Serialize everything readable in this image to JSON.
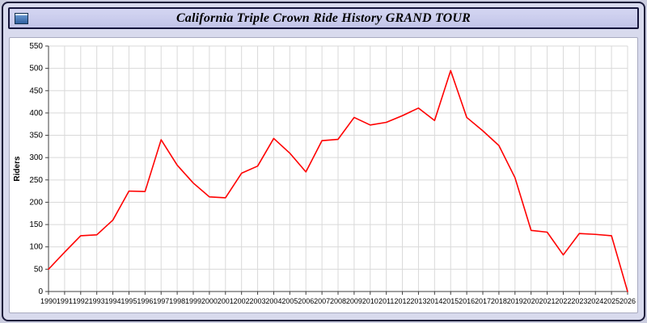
{
  "window": {
    "title": "California Triple Crown Ride History GRAND TOUR"
  },
  "chart_data": {
    "type": "line",
    "title": "California Triple Crown Ride History GRAND TOUR",
    "xlabel": "",
    "ylabel": "Riders",
    "ylim": [
      0,
      550
    ],
    "ytick_step": 50,
    "grid": true,
    "legend": false,
    "line_color": "#ff0000",
    "x": [
      1990,
      1991,
      1992,
      1993,
      1994,
      1995,
      1996,
      1997,
      1998,
      1999,
      2000,
      2001,
      2002,
      2003,
      2004,
      2005,
      2006,
      2007,
      2008,
      2009,
      2010,
      2011,
      2012,
      2013,
      2014,
      2015,
      2016,
      2017,
      2018,
      2019,
      2020,
      2021,
      2022,
      2023,
      2024,
      2025,
      2026
    ],
    "values": [
      50,
      88,
      125,
      127,
      160,
      225,
      224,
      340,
      283,
      243,
      212,
      210,
      265,
      281,
      343,
      310,
      268,
      338,
      341,
      390,
      373,
      379,
      394,
      411,
      383,
      495,
      390,
      360,
      327,
      255,
      137,
      133,
      82,
      130,
      128,
      125,
      0
    ]
  },
  "style": {
    "grid_color": "#d9d9d9",
    "axis_color": "#404040",
    "tick_label_color": "#000000"
  }
}
